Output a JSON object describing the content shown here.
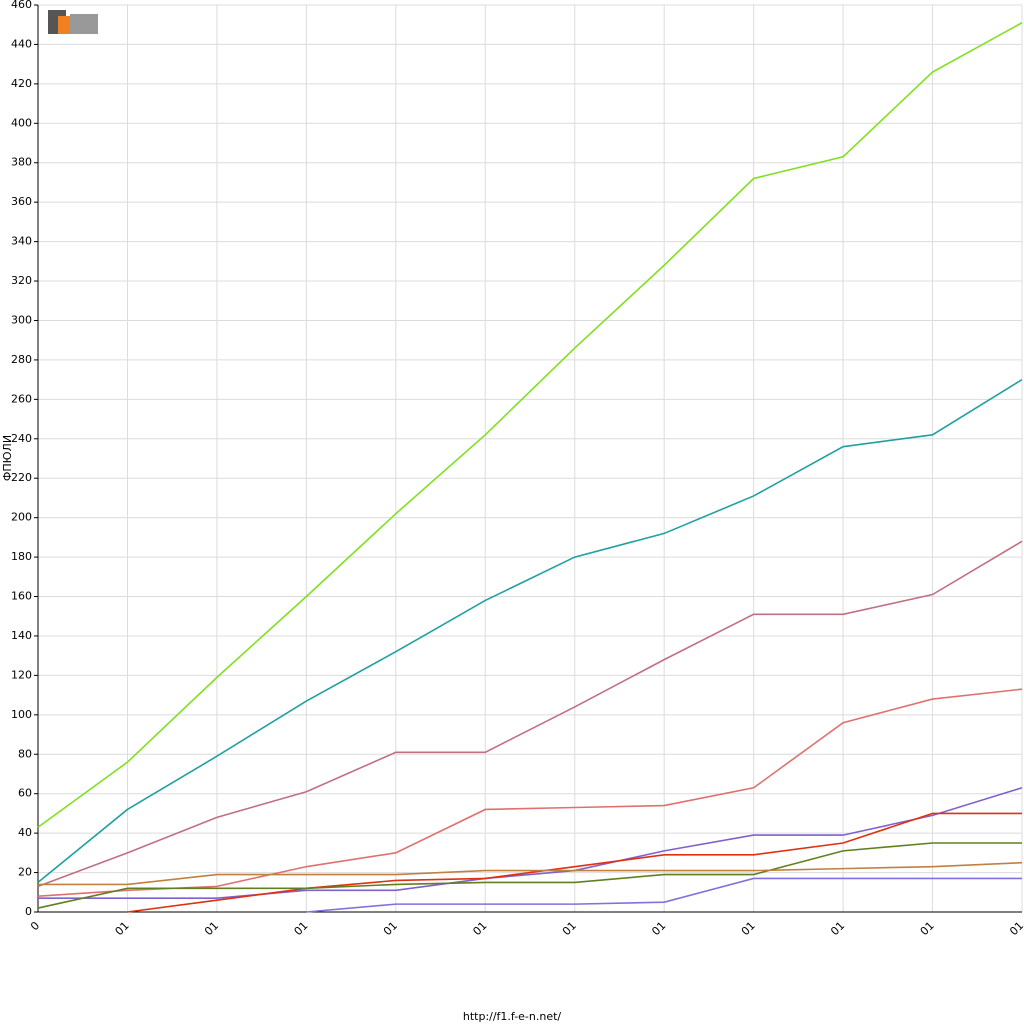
{
  "chart_data": {
    "type": "line",
    "y_label": "ФПЮЛИ",
    "footer": "http://f1.f-e-n.net/",
    "categories": [
      "0",
      "01",
      "01",
      "01",
      "01",
      "01",
      "01",
      "01",
      "01",
      "01",
      "01",
      "01"
    ],
    "ylim": [
      0,
      460
    ],
    "yticks": [
      0,
      20,
      40,
      60,
      80,
      100,
      120,
      140,
      160,
      180,
      200,
      220,
      240,
      260,
      280,
      300,
      320,
      340,
      360,
      380,
      400,
      420,
      440,
      460
    ],
    "grid": true,
    "series": [
      {
        "color": "#80e020",
        "values": [
          43,
          76,
          119,
          160,
          202,
          242,
          286,
          328,
          372,
          383,
          426,
          451
        ]
      },
      {
        "color": "#20a0a0",
        "values": [
          15,
          52,
          79,
          107,
          132,
          158,
          180,
          192,
          211,
          236,
          242,
          270
        ]
      },
      {
        "color": "#c07080",
        "values": [
          13,
          30,
          48,
          61,
          81,
          81,
          104,
          128,
          151,
          151,
          161,
          188
        ]
      },
      {
        "color": "#e07070",
        "values": [
          8,
          11,
          13,
          23,
          30,
          52,
          53,
          54,
          63,
          96,
          108,
          113
        ]
      },
      {
        "color": "#8060d0",
        "values": [
          7,
          7,
          7,
          11,
          11,
          17,
          21,
          31,
          39,
          39,
          49,
          63
        ]
      },
      {
        "color": "#e03010",
        "values": [
          null,
          0,
          6,
          12,
          16,
          17,
          23,
          29,
          29,
          35,
          50,
          50
        ]
      },
      {
        "color": "#608020",
        "values": [
          2,
          12,
          12,
          12,
          14,
          15,
          15,
          19,
          19,
          31,
          35,
          35
        ]
      },
      {
        "color": "#c08040",
        "values": [
          14,
          14,
          19,
          19,
          19,
          21,
          21,
          21,
          21,
          22,
          23,
          25
        ]
      },
      {
        "color": "#8070e0",
        "values": [
          null,
          null,
          null,
          0,
          4,
          4,
          4,
          5,
          17,
          17,
          17,
          17
        ]
      }
    ]
  }
}
